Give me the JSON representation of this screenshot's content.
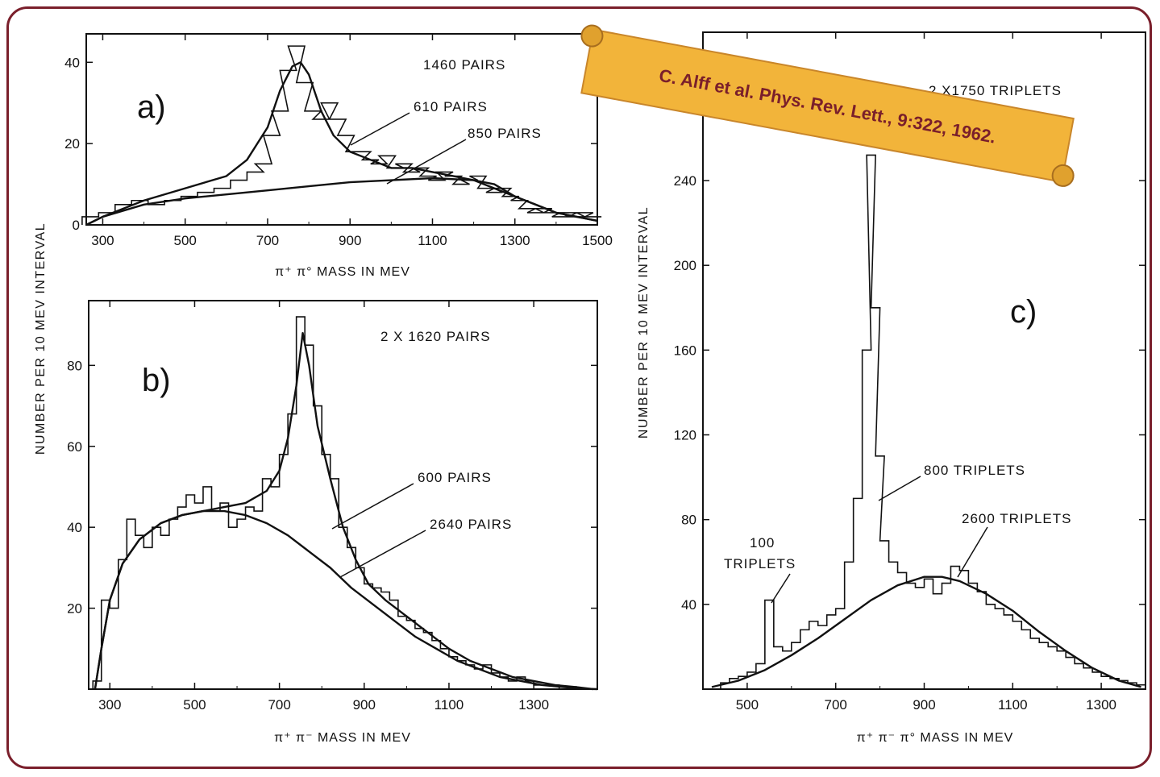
{
  "ylabel_shared": "NUMBER PER 10 MEV INTERVAL",
  "citation": "C. Alff et al. Phys. Rev. Lett., 9:322, 1962.",
  "colors": {
    "frame": "#7a1f2b",
    "banner_fill": "#f2b43a",
    "banner_text": "#7a1f2b"
  },
  "chart_data": [
    {
      "id": "a",
      "panel_label": "a)",
      "type": "line",
      "title": "",
      "xlabel": "π⁺ π° MASS IN MEV",
      "ylabel": "NUMBER PER 10 MEV INTERVAL",
      "xlim": [
        260,
        1500
      ],
      "ylim": [
        0,
        47
      ],
      "xticks": [
        300,
        500,
        700,
        900,
        1100,
        1300,
        1500
      ],
      "yticks": [
        0,
        20,
        40
      ],
      "annotations": [
        {
          "text": "1460 PAIRS"
        },
        {
          "text": "610 PAIRS"
        },
        {
          "text": "850 PAIRS"
        }
      ],
      "series": [
        {
          "kind": "histogram",
          "x": [
            270,
            310,
            350,
            390,
            430,
            470,
            510,
            550,
            590,
            630,
            670,
            690,
            710,
            730,
            750,
            770,
            790,
            810,
            830,
            850,
            870,
            890,
            910,
            930,
            950,
            970,
            990,
            1010,
            1030,
            1050,
            1070,
            1090,
            1110,
            1130,
            1150,
            1170,
            1190,
            1210,
            1230,
            1250,
            1270,
            1290,
            1310,
            1330,
            1350,
            1370,
            1390,
            1410,
            1430,
            1450,
            1470,
            1490
          ],
          "y": [
            2,
            3,
            5,
            6,
            5,
            6,
            7,
            8,
            9,
            11,
            13,
            15,
            22,
            28,
            38,
            44,
            35,
            28,
            26,
            30,
            26,
            22,
            18,
            18,
            16,
            15,
            17,
            14,
            15,
            13,
            14,
            12,
            11,
            13,
            12,
            10,
            11,
            12,
            9,
            8,
            9,
            7,
            6,
            4,
            3,
            4,
            3,
            2,
            3,
            2,
            3,
            2
          ]
        },
        {
          "kind": "fit",
          "label": "total",
          "x": [
            260,
            300,
            400,
            500,
            600,
            650,
            700,
            730,
            760,
            780,
            800,
            830,
            860,
            900,
            950,
            1000,
            1050,
            1100,
            1150,
            1200,
            1250,
            1300,
            1350,
            1400,
            1450,
            1500
          ],
          "y": [
            0,
            2,
            6,
            9,
            12,
            16,
            24,
            33,
            39,
            40,
            37,
            28,
            22,
            18,
            16,
            14,
            14,
            13,
            12,
            11,
            9,
            7,
            5,
            3,
            2,
            1
          ]
        },
        {
          "kind": "fit",
          "label": "850 PAIRS",
          "x": [
            260,
            300,
            400,
            500,
            600,
            700,
            800,
            900,
            1000,
            1100,
            1200,
            1250,
            1300,
            1350,
            1400,
            1450,
            1500
          ],
          "y": [
            0,
            2,
            5,
            6.5,
            7.5,
            8.5,
            9.5,
            10.5,
            11,
            11.5,
            11,
            10,
            7,
            5,
            3,
            2,
            1
          ]
        }
      ]
    },
    {
      "id": "b",
      "panel_label": "b)",
      "type": "line",
      "title": "",
      "xlabel": "π⁺ π⁻ MASS IN MEV",
      "ylabel": "NUMBER PER 10 MEV INTERVAL",
      "xlim": [
        250,
        1450
      ],
      "ylim": [
        0,
        96
      ],
      "xticks": [
        300,
        500,
        700,
        900,
        1100,
        1300
      ],
      "yticks": [
        20,
        40,
        60,
        80
      ],
      "annotations": [
        {
          "text": "2 X 1620 PAIRS"
        },
        {
          "text": "600 PAIRS"
        },
        {
          "text": "2640 PAIRS"
        }
      ],
      "series": [
        {
          "kind": "histogram",
          "x": [
            270,
            290,
            310,
            330,
            350,
            370,
            390,
            410,
            430,
            450,
            470,
            490,
            510,
            530,
            550,
            570,
            590,
            610,
            630,
            650,
            670,
            690,
            710,
            730,
            750,
            770,
            790,
            810,
            830,
            850,
            870,
            890,
            910,
            930,
            950,
            970,
            990,
            1010,
            1030,
            1050,
            1070,
            1090,
            1110,
            1130,
            1150,
            1170,
            1190,
            1210,
            1230,
            1250,
            1270,
            1290,
            1310,
            1330,
            1350,
            1370,
            1390
          ],
          "y": [
            2,
            22,
            20,
            32,
            42,
            38,
            35,
            40,
            38,
            42,
            45,
            48,
            46,
            50,
            44,
            46,
            40,
            42,
            45,
            44,
            52,
            50,
            58,
            68,
            92,
            85,
            70,
            58,
            52,
            40,
            35,
            30,
            26,
            25,
            24,
            22,
            18,
            17,
            15,
            14,
            12,
            10,
            8,
            7,
            6,
            5,
            6,
            4,
            3,
            2,
            3,
            2,
            1,
            1,
            1,
            0,
            0
          ]
        },
        {
          "kind": "fit",
          "label": "total",
          "x": [
            265,
            280,
            300,
            330,
            370,
            420,
            470,
            520,
            570,
            620,
            670,
            700,
            720,
            740,
            755,
            770,
            790,
            820,
            850,
            880,
            910,
            950,
            1000,
            1050,
            1100,
            1150,
            1200,
            1250,
            1300,
            1350,
            1400,
            1440
          ],
          "y": [
            0,
            10,
            22,
            31,
            37,
            41,
            43,
            44,
            45,
            46,
            49,
            54,
            62,
            75,
            88,
            80,
            65,
            52,
            40,
            32,
            26,
            22,
            18,
            14,
            10,
            7,
            5,
            3,
            2,
            1,
            0.5,
            0
          ]
        },
        {
          "kind": "fit",
          "label": "2640 PAIRS",
          "x": [
            265,
            280,
            300,
            330,
            370,
            420,
            470,
            520,
            570,
            620,
            670,
            720,
            770,
            820,
            870,
            920,
            970,
            1020,
            1070,
            1120,
            1170,
            1220,
            1270,
            1320,
            1370,
            1420,
            1450
          ],
          "y": [
            0,
            10,
            22,
            31,
            37,
            41,
            43,
            44,
            44,
            43,
            41,
            38,
            34,
            30,
            25,
            21,
            17,
            13,
            10,
            7,
            5,
            3,
            2,
            1,
            0.5,
            0.1,
            0
          ]
        }
      ]
    },
    {
      "id": "c",
      "panel_label": "c)",
      "type": "line",
      "title": "",
      "xlabel": "π⁺ π⁻ π° MASS IN MEV",
      "ylabel": "NUMBER PER 10 MEV INTERVAL",
      "xlim": [
        400,
        1400
      ],
      "ylim": [
        0,
        310
      ],
      "xticks": [
        500,
        700,
        900,
        1100,
        1300
      ],
      "yticks": [
        40,
        80,
        120,
        160,
        200,
        240
      ],
      "annotations": [
        {
          "text": "2 X1750 TRIPLETS"
        },
        {
          "text": "800 TRIPLETS"
        },
        {
          "text": "2600 TRIPLETS"
        },
        {
          "text": "100"
        },
        {
          "text": "TRIPLETS"
        }
      ],
      "series": [
        {
          "kind": "histogram",
          "x": [
            450,
            470,
            490,
            510,
            530,
            550,
            570,
            590,
            610,
            630,
            650,
            670,
            690,
            710,
            730,
            750,
            770,
            780,
            790,
            800,
            810,
            830,
            850,
            870,
            890,
            910,
            930,
            950,
            970,
            990,
            1010,
            1030,
            1050,
            1070,
            1090,
            1110,
            1130,
            1150,
            1170,
            1190,
            1210,
            1230,
            1250,
            1270,
            1290,
            1310,
            1330,
            1350,
            1370,
            1390
          ],
          "y": [
            3,
            5,
            6,
            8,
            12,
            42,
            20,
            18,
            22,
            28,
            32,
            30,
            35,
            38,
            60,
            90,
            160,
            252,
            180,
            110,
            70,
            60,
            55,
            50,
            48,
            52,
            45,
            50,
            58,
            56,
            50,
            46,
            40,
            38,
            35,
            32,
            28,
            24,
            22,
            20,
            18,
            15,
            12,
            10,
            8,
            6,
            5,
            4,
            3,
            2
          ]
        },
        {
          "kind": "fit",
          "label": "2600 TRIPLETS",
          "x": [
            420,
            480,
            540,
            600,
            660,
            720,
            780,
            840,
            900,
            940,
            980,
            1040,
            1100,
            1160,
            1220,
            1280,
            1340,
            1390
          ],
          "y": [
            1,
            4,
            9,
            16,
            24,
            33,
            42,
            49,
            53,
            53,
            51,
            45,
            37,
            27,
            18,
            10,
            4,
            1
          ]
        }
      ]
    }
  ]
}
